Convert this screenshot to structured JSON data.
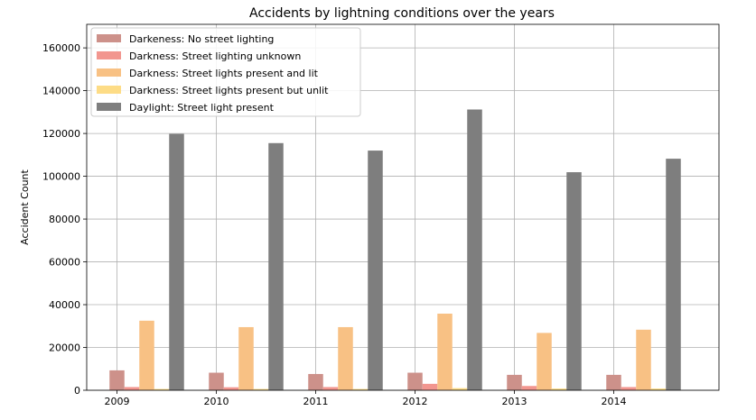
{
  "chart_data": {
    "type": "bar",
    "title": "Accidents by lightning conditions over the years",
    "xlabel": "",
    "ylabel": "Accident Count",
    "categories": [
      "2009",
      "2010",
      "2011",
      "2012",
      "2013",
      "2014"
    ],
    "yticks": [
      "0",
      "20000",
      "40000",
      "60000",
      "80000",
      "100000",
      "120000",
      "140000",
      "160000"
    ],
    "ylim": [
      0,
      171000
    ],
    "grid": true,
    "legend_position": "top-left",
    "series": [
      {
        "name": "Darkeness: No street lighting",
        "color": "#cd918a",
        "values": [
          9300,
          8200,
          7600,
          8200,
          7200,
          7200
        ]
      },
      {
        "name": "Darkness: Street lighting unknown",
        "color": "#f2968f",
        "values": [
          1500,
          1400,
          1500,
          3000,
          2000,
          1500
        ]
      },
      {
        "name": "Darkness: Street lights present and lit",
        "color": "#f8c184",
        "values": [
          32500,
          29500,
          29500,
          35800,
          26800,
          28300
        ]
      },
      {
        "name": "Darkness: Street lights present but unlit",
        "color": "#fddc86",
        "values": [
          600,
          600,
          600,
          1000,
          800,
          800
        ]
      },
      {
        "name": "Daylight: Street light present",
        "color": "#7e7e7e",
        "values": [
          119800,
          115500,
          112000,
          131200,
          101900,
          108200
        ]
      }
    ]
  }
}
